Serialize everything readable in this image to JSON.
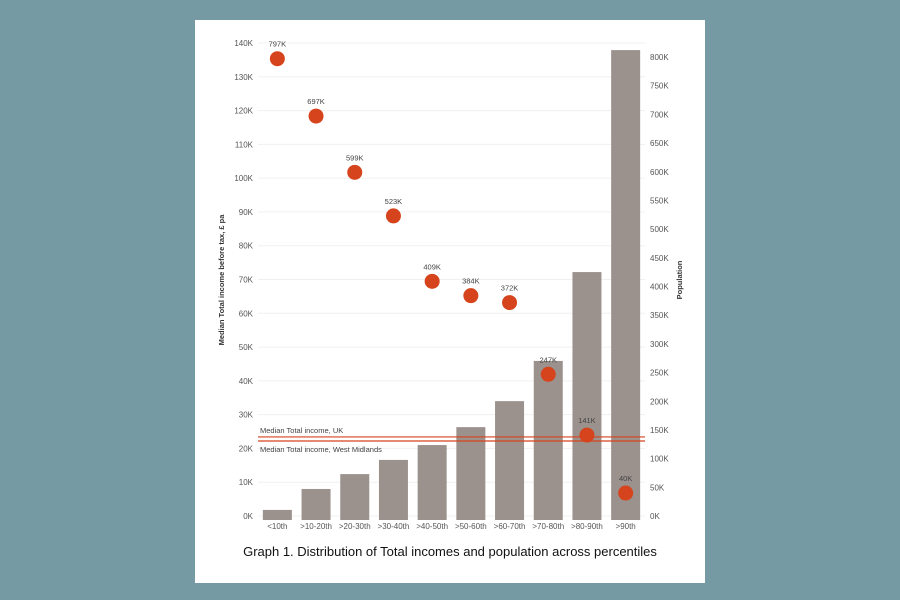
{
  "chart_data": {
    "type": "bar",
    "title": "Graph 1. Distribution of Total incomes and population across percentiles",
    "categories": [
      "<10th",
      ">10-20th",
      ">20-30th",
      ">30-40th",
      ">40-50th",
      ">50-60th",
      ">60-70th",
      ">70-80th",
      ">80-90th",
      ">90th"
    ],
    "ylabel": "Median Total income before tax, £ pa",
    "y2label": "Population",
    "ylim": [
      0,
      140000
    ],
    "y2lim": [
      0,
      800000
    ],
    "yticks": [
      "0K",
      "10K",
      "20K",
      "30K",
      "40K",
      "50K",
      "60K",
      "70K",
      "80K",
      "90K",
      "100K",
      "110K",
      "120K",
      "130K",
      "140K"
    ],
    "y2ticks": [
      "0K",
      "50K",
      "100K",
      "150K",
      "200K",
      "250K",
      "300K",
      "350K",
      "400K",
      "450K",
      "500K",
      "550K",
      "600K",
      "650K",
      "700K",
      "750K",
      "800K"
    ],
    "series": [
      {
        "name": "Median Total income",
        "kind": "bar",
        "axis": "left",
        "color": "#9b918d",
        "values": [
          1800,
          8000,
          12400,
          16600,
          21000,
          26300,
          34000,
          45900,
          72200,
          137900
        ]
      },
      {
        "name": "Population",
        "kind": "scatter",
        "axis": "right",
        "color": "#d5441c",
        "values": [
          797000,
          697000,
          599000,
          523000,
          409000,
          384000,
          372000,
          247000,
          141000,
          40000
        ],
        "labels": [
          "797K",
          "697K",
          "599K",
          "523K",
          "409K",
          "384K",
          "372K",
          "247K",
          "141K",
          "40K"
        ]
      }
    ],
    "reference_lines": [
      {
        "label": "Median Total income, UK",
        "value": 23400,
        "color": "#d5441c"
      },
      {
        "label": "Median Total income, West Midlands",
        "value": 22200,
        "color": "#d5441c"
      }
    ],
    "grid": true
  }
}
